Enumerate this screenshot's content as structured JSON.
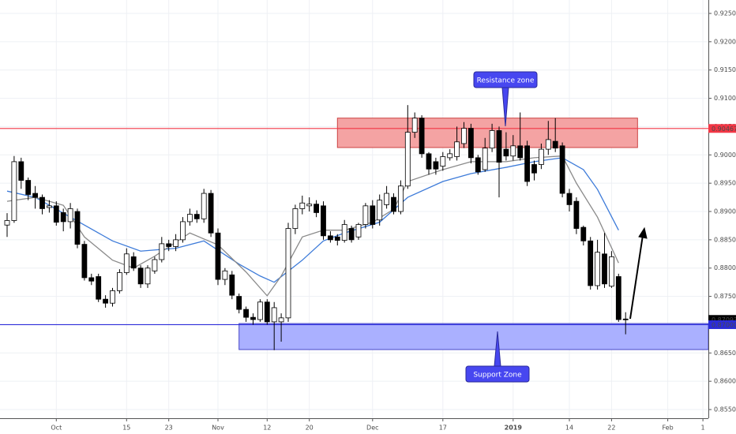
{
  "chart_data": {
    "type": "candlestick",
    "categories": [
      null,
      null,
      null,
      null,
      null,
      null,
      null,
      "Oct",
      null,
      null,
      null,
      null,
      null,
      null,
      null,
      null,
      null,
      "15",
      null,
      null,
      null,
      null,
      null,
      "23",
      null,
      null,
      null,
      null,
      null,
      null,
      "Nov",
      null,
      null,
      null,
      null,
      null,
      null,
      "12",
      null,
      null,
      null,
      null,
      null,
      "20",
      null,
      null,
      null,
      null,
      null,
      null,
      null,
      null,
      "Dec",
      null,
      null,
      null,
      null,
      null,
      null,
      null,
      null,
      null,
      "17",
      null,
      null,
      null,
      null,
      null,
      null,
      null,
      null,
      null,
      "2019",
      null,
      null,
      null,
      null,
      null,
      null,
      null,
      "14",
      null,
      null,
      null,
      null,
      null,
      "22",
      null,
      null,
      null,
      null,
      null,
      null,
      null,
      "Feb",
      null,
      null,
      null,
      null,
      "1"
    ],
    "open": [
      0.8876,
      0.8884,
      0.8988,
      0.8955,
      0.8932,
      0.8925,
      0.8907,
      0.891,
      0.8898,
      0.8882,
      0.89,
      0.8842,
      0.8783,
      0.8785,
      0.8745,
      0.8738,
      0.876,
      0.8792,
      0.882,
      0.88,
      0.8772,
      0.8795,
      0.8815,
      0.8843,
      0.8838,
      0.885,
      0.8882,
      0.8895,
      0.8887,
      0.8932,
      0.8862,
      0.878,
      0.8788,
      0.875,
      0.8727,
      0.8713,
      0.8709,
      0.874,
      0.8705,
      0.8705,
      0.8712,
      0.887,
      0.8905,
      0.891,
      0.8913,
      0.891,
      0.8857,
      0.8855,
      0.8849,
      0.887,
      0.8855,
      0.8877,
      0.891,
      0.8885,
      0.8912,
      0.8925,
      0.89,
      0.8945,
      0.904,
      0.9065,
      0.9002,
      0.8988,
      0.898,
      0.8995,
      0.8997,
      0.902,
      0.9047,
      0.8995,
      0.8974,
      0.9012,
      0.9043,
      0.901,
      0.8998,
      0.9016,
      0.9016,
      0.8983,
      0.8983,
      0.901,
      0.9024,
      0.9016,
      0.8932,
      0.8918,
      0.8872,
      0.8848,
      0.8769,
      0.8825,
      0.8768,
      0.8785,
      0.871,
      null,
      null,
      null,
      null,
      null,
      null,
      null,
      null,
      null,
      null,
      null
    ],
    "high": [
      0.8897,
      0.8998,
      0.8995,
      0.896,
      0.8945,
      0.893,
      0.892,
      0.8918,
      0.8905,
      0.8915,
      0.8905,
      0.8848,
      0.879,
      0.879,
      0.8752,
      0.8765,
      0.8798,
      0.8835,
      0.8828,
      0.8805,
      0.8805,
      0.882,
      0.8855,
      0.885,
      0.886,
      0.889,
      0.8905,
      0.8902,
      0.894,
      0.8938,
      0.887,
      0.88,
      0.8795,
      0.8755,
      0.8732,
      0.872,
      0.8745,
      0.8745,
      0.874,
      0.872,
      0.888,
      0.8912,
      0.8928,
      0.8925,
      0.892,
      0.8918,
      0.8865,
      0.886,
      0.8885,
      0.8875,
      0.888,
      0.8915,
      0.892,
      0.893,
      0.8945,
      0.8932,
      0.8955,
      0.9088,
      0.9075,
      0.907,
      0.9005,
      0.8995,
      0.9005,
      0.901,
      0.905,
      0.9058,
      0.9055,
      0.9,
      0.903,
      0.9055,
      0.905,
      0.904,
      0.9035,
      0.9075,
      0.9025,
      0.899,
      0.902,
      0.906,
      0.9065,
      0.9022,
      0.894,
      0.8925,
      0.8875,
      0.8855,
      0.885,
      0.8862,
      0.883,
      0.879,
      0.8722,
      null,
      null,
      null,
      null,
      null,
      null,
      null,
      null,
      null,
      null,
      null
    ],
    "low": [
      0.8855,
      0.888,
      0.894,
      0.892,
      0.8905,
      0.8895,
      0.8898,
      0.8875,
      0.8865,
      0.887,
      0.8835,
      0.8778,
      0.877,
      0.874,
      0.873,
      0.8732,
      0.8755,
      0.8788,
      0.8795,
      0.8765,
      0.8765,
      0.879,
      0.881,
      0.883,
      0.883,
      0.8845,
      0.8875,
      0.888,
      0.888,
      0.8855,
      0.877,
      0.877,
      0.8745,
      0.872,
      0.8705,
      0.87,
      0.8705,
      0.87,
      0.8655,
      0.867,
      0.8705,
      0.886,
      0.8895,
      0.89,
      0.889,
      0.885,
      0.8845,
      0.884,
      0.8845,
      0.8845,
      0.885,
      0.887,
      0.887,
      0.8875,
      0.8905,
      0.8895,
      0.8895,
      0.894,
      0.903,
      0.8995,
      0.8965,
      0.8965,
      0.8972,
      0.899,
      0.899,
      0.9012,
      0.8985,
      0.8965,
      0.897,
      0.9005,
      0.8925,
      0.899,
      0.899,
      0.899,
      0.8945,
      0.8955,
      0.8975,
      0.9,
      0.9005,
      0.8925,
      0.89,
      0.886,
      0.884,
      0.8762,
      0.8762,
      0.8765,
      0.8765,
      0.8705,
      0.8683,
      null,
      null,
      null,
      null,
      null,
      null,
      null,
      null,
      null,
      null,
      null
    ],
    "close": [
      0.8884,
      0.8988,
      0.8955,
      0.893,
      0.8925,
      0.8905,
      0.891,
      0.8881,
      0.8882,
      0.8905,
      0.8842,
      0.8783,
      0.8777,
      0.8745,
      0.8738,
      0.876,
      0.8792,
      0.8825,
      0.88,
      0.8772,
      0.88,
      0.8815,
      0.8843,
      0.8838,
      0.885,
      0.8882,
      0.8895,
      0.8887,
      0.8932,
      0.8862,
      0.878,
      0.8795,
      0.8752,
      0.8727,
      0.8713,
      0.8709,
      0.874,
      0.8705,
      0.873,
      0.8712,
      0.887,
      0.8905,
      0.8915,
      0.8913,
      0.8898,
      0.8857,
      0.885,
      0.8849,
      0.8877,
      0.885,
      0.8877,
      0.891,
      0.8877,
      0.892,
      0.8932,
      0.89,
      0.8945,
      0.904,
      0.9065,
      0.9002,
      0.8975,
      0.8975,
      0.8997,
      0.9002,
      0.9023,
      0.9047,
      0.8995,
      0.897,
      0.9012,
      0.9043,
      0.8987,
      0.8998,
      0.9016,
      0.8995,
      0.8953,
      0.8968,
      0.901,
      0.9027,
      0.9012,
      0.8932,
      0.8912,
      0.887,
      0.8848,
      0.8769,
      0.8828,
      0.8772,
      0.882,
      0.8709,
      0.87093,
      null,
      null,
      null,
      null,
      null,
      null,
      null,
      null,
      null,
      null,
      null
    ],
    "up_color": "#ffffff",
    "down_color": "#000000",
    "moving_averages": [
      {
        "color": "#3d7bd9",
        "x": [
          0,
          4,
          10,
          15,
          19,
          24,
          28,
          33,
          36,
          38,
          42,
          45,
          48,
          53,
          57,
          62,
          66,
          71,
          75,
          79,
          82,
          84,
          87
        ],
        "values": [
          0.8936,
          0.8925,
          0.8883,
          0.8848,
          0.883,
          0.8835,
          0.8848,
          0.8807,
          0.8786,
          0.8775,
          0.8814,
          0.8848,
          0.8862,
          0.8881,
          0.8925,
          0.8953,
          0.8967,
          0.8978,
          0.8988,
          0.8995,
          0.8974,
          0.8939,
          0.8867
        ]
      },
      {
        "color": "#8a8a8a",
        "x": [
          0,
          4,
          8,
          11,
          15,
          18,
          21,
          26,
          30,
          34,
          37,
          39,
          42,
          45,
          48,
          52,
          55,
          57,
          62,
          66,
          71,
          75,
          79,
          81,
          84,
          87
        ],
        "values": [
          0.8918,
          0.8925,
          0.8911,
          0.8855,
          0.8814,
          0.88,
          0.8821,
          0.8862,
          0.8841,
          0.8793,
          0.8751,
          0.8786,
          0.8855,
          0.8867,
          0.8867,
          0.8881,
          0.8904,
          0.8953,
          0.8974,
          0.8988,
          0.8988,
          0.8995,
          0.8998,
          0.895,
          0.889,
          0.8809
        ]
      }
    ],
    "ylim": [
      0.85347,
      0.92737
    ],
    "yticks": [
      {
        "value": 0.855,
        "label": "0.85500"
      },
      {
        "value": 0.86,
        "label": "0.86000"
      },
      {
        "value": 0.865,
        "label": "0.86500"
      },
      {
        "value": 0.87,
        "label": "0.87000"
      },
      {
        "value": 0.875,
        "label": "0.87500"
      },
      {
        "value": 0.88,
        "label": "0.88000"
      },
      {
        "value": 0.885,
        "label": "0.88500"
      },
      {
        "value": 0.89,
        "label": "0.89000"
      },
      {
        "value": 0.895,
        "label": "0.89500"
      },
      {
        "value": 0.9,
        "label": "0.90000"
      },
      {
        "value": 0.905,
        "label": "0.90500"
      },
      {
        "value": 0.91,
        "label": "0.91000"
      },
      {
        "value": 0.915,
        "label": "0.91500"
      },
      {
        "value": 0.92,
        "label": "0.92000"
      },
      {
        "value": 0.925,
        "label": "0.92500"
      }
    ],
    "grid": true,
    "price_lines": [
      {
        "value": 0.90467,
        "label": "0.90467",
        "color": "#f23645",
        "line": true
      },
      {
        "value": 0.87093,
        "label": "0.87093",
        "color": "#000000",
        "line": false
      },
      {
        "value": 0.87,
        "label": "0.87000",
        "color": "#2b2bd9",
        "line": true
      }
    ],
    "zones": [
      {
        "label": "Resistance zone",
        "x": [
          47,
          89.7
        ],
        "y": [
          0.9013,
          0.9065
        ],
        "color": "#f4a3a3",
        "border": "#c44"
      },
      {
        "label": "Support Zone",
        "x": [
          33,
          100
        ],
        "y": [
          0.8656,
          0.8702
        ],
        "color": "#aab0ff",
        "border": "#4646c8"
      }
    ]
  }
}
